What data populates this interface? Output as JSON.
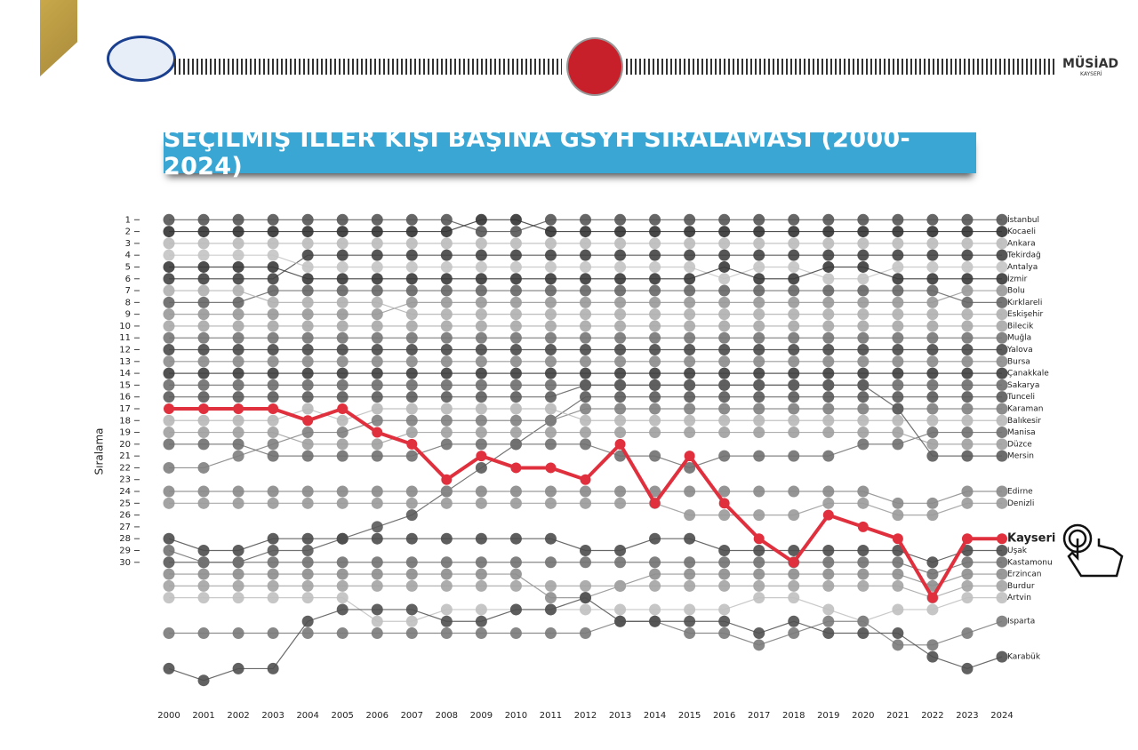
{
  "header": {
    "brand": "MÜSİAD",
    "brand_sub": "KAYSERİ"
  },
  "chart_data": {
    "type": "bump",
    "title": "SEÇİLMİŞ İLLER KİŞİ BAŞINA GSYH SIRALAMASI (2000-2024)",
    "ylabel": "Sıralama",
    "x": [
      2000,
      2001,
      2002,
      2003,
      2004,
      2005,
      2006,
      2007,
      2008,
      2009,
      2010,
      2011,
      2012,
      2013,
      2014,
      2015,
      2016,
      2017,
      2018,
      2019,
      2020,
      2021,
      2022,
      2023,
      2024
    ],
    "xlim": [
      2000,
      2024
    ],
    "xticks": [
      2000,
      2001,
      2002,
      2003,
      2004,
      2005,
      2006,
      2007,
      2008,
      2009,
      2010,
      2011,
      2012,
      2013,
      2014,
      2015,
      2016,
      2017,
      2018,
      2019,
      2020,
      2021,
      2022,
      2023,
      2024
    ],
    "ylim": [
      0,
      41
    ],
    "y_inverted": true,
    "yticks": [
      1,
      2,
      3,
      4,
      5,
      6,
      7,
      8,
      9,
      10,
      11,
      12,
      13,
      14,
      15,
      16,
      17,
      18,
      19,
      20,
      21,
      22,
      23,
      24,
      25,
      26,
      27,
      28,
      29,
      30
    ],
    "highlight": "Kayseri",
    "series": [
      {
        "name": "İstanbul",
        "color": "#555555",
        "values": [
          1,
          1,
          1,
          1,
          1,
          1,
          1,
          1,
          1,
          2,
          2,
          1,
          1,
          1,
          1,
          1,
          1,
          1,
          1,
          1,
          1,
          1,
          1,
          1,
          1
        ]
      },
      {
        "name": "Kocaeli",
        "color": "#333333",
        "values": [
          2,
          2,
          2,
          2,
          2,
          2,
          2,
          2,
          2,
          1,
          1,
          2,
          2,
          2,
          2,
          2,
          2,
          2,
          2,
          2,
          2,
          2,
          2,
          2,
          2
        ]
      },
      {
        "name": "Ankara",
        "color": "#bbbbbb",
        "values": [
          3,
          3,
          3,
          3,
          3,
          3,
          3,
          3,
          3,
          3,
          3,
          3,
          3,
          3,
          3,
          3,
          3,
          3,
          3,
          3,
          3,
          3,
          3,
          3,
          3
        ]
      },
      {
        "name": "Tekirdağ",
        "color": "#444444",
        "values": [
          6,
          6,
          6,
          6,
          4,
          4,
          4,
          4,
          4,
          4,
          4,
          4,
          4,
          4,
          4,
          4,
          4,
          4,
          4,
          4,
          4,
          4,
          4,
          4,
          4
        ]
      },
      {
        "name": "Antalya",
        "color": "#c4c4c4",
        "values": [
          4,
          4,
          4,
          4,
          5,
          5,
          5,
          5,
          5,
          5,
          5,
          5,
          5,
          5,
          5,
          5,
          6,
          5,
          5,
          6,
          6,
          5,
          5,
          5,
          5
        ]
      },
      {
        "name": "İzmir",
        "color": "#3a3a3a",
        "values": [
          5,
          5,
          5,
          5,
          6,
          6,
          6,
          6,
          6,
          6,
          6,
          6,
          6,
          6,
          6,
          6,
          5,
          6,
          6,
          5,
          5,
          6,
          6,
          6,
          6
        ]
      },
      {
        "name": "Bolu",
        "color": "#999999",
        "values": [
          9,
          9,
          9,
          9,
          9,
          9,
          9,
          8,
          8,
          8,
          8,
          8,
          8,
          8,
          8,
          8,
          8,
          8,
          8,
          8,
          8,
          8,
          8,
          7,
          7
        ]
      },
      {
        "name": "Kırklareli",
        "color": "#666666",
        "values": [
          8,
          8,
          8,
          7,
          7,
          7,
          7,
          7,
          7,
          7,
          7,
          7,
          7,
          7,
          7,
          7,
          7,
          7,
          7,
          7,
          7,
          7,
          7,
          8,
          8
        ]
      },
      {
        "name": "Eskişehir",
        "color": "#b0b0b0",
        "values": [
          7,
          7,
          7,
          8,
          8,
          8,
          8,
          9,
          9,
          9,
          9,
          9,
          9,
          9,
          9,
          9,
          9,
          9,
          9,
          9,
          9,
          9,
          9,
          9,
          9
        ]
      },
      {
        "name": "Bilecik",
        "color": "#a8a8a8",
        "values": [
          10,
          10,
          10,
          10,
          10,
          10,
          10,
          10,
          10,
          10,
          10,
          10,
          10,
          10,
          10,
          10,
          10,
          10,
          10,
          10,
          10,
          10,
          10,
          10,
          10
        ]
      },
      {
        "name": "Muğla",
        "color": "#777777",
        "values": [
          11,
          11,
          11,
          11,
          11,
          11,
          11,
          11,
          11,
          11,
          11,
          11,
          11,
          11,
          11,
          11,
          11,
          11,
          11,
          11,
          11,
          11,
          11,
          11,
          11
        ]
      },
      {
        "name": "Yalova",
        "color": "#4a4a4a",
        "values": [
          12,
          12,
          12,
          12,
          12,
          12,
          12,
          12,
          12,
          12,
          12,
          12,
          12,
          12,
          12,
          12,
          12,
          12,
          12,
          12,
          12,
          12,
          12,
          12,
          12
        ]
      },
      {
        "name": "Bursa",
        "color": "#8c8c8c",
        "values": [
          13,
          13,
          13,
          13,
          13,
          13,
          13,
          13,
          13,
          13,
          13,
          13,
          13,
          13,
          13,
          13,
          13,
          13,
          13,
          13,
          13,
          13,
          13,
          13,
          13
        ]
      },
      {
        "name": "Çanakkale",
        "color": "#3f3f3f",
        "values": [
          14,
          14,
          14,
          14,
          14,
          14,
          14,
          14,
          14,
          14,
          14,
          14,
          14,
          14,
          14,
          14,
          14,
          14,
          14,
          14,
          14,
          14,
          14,
          14,
          14
        ]
      },
      {
        "name": "Sakarya",
        "color": "#6e6e6e",
        "values": [
          15,
          15,
          15,
          15,
          15,
          15,
          15,
          15,
          15,
          15,
          15,
          15,
          15,
          15,
          15,
          15,
          15,
          15,
          15,
          15,
          15,
          15,
          15,
          15,
          15
        ]
      },
      {
        "name": "Tunceli",
        "color": "#5a5a5a",
        "values": [
          30,
          30,
          30,
          29,
          29,
          28,
          27,
          26,
          24,
          22,
          20,
          18,
          16,
          16,
          16,
          16,
          16,
          16,
          16,
          16,
          16,
          16,
          16,
          16,
          16
        ]
      },
      {
        "name": "Karaman",
        "color": "#808080",
        "values": [
          22,
          22,
          21,
          20,
          19,
          19,
          18,
          18,
          18,
          18,
          18,
          18,
          17,
          17,
          17,
          17,
          17,
          17,
          17,
          17,
          17,
          17,
          17,
          17,
          17
        ]
      },
      {
        "name": "Balıkesir",
        "color": "#b8b8b8",
        "values": [
          18,
          18,
          18,
          18,
          17,
          18,
          17,
          17,
          17,
          17,
          17,
          17,
          18,
          18,
          18,
          18,
          18,
          18,
          18,
          18,
          18,
          18,
          18,
          18,
          18
        ]
      },
      {
        "name": "Manisa",
        "color": "#707070",
        "values": [
          20,
          20,
          20,
          21,
          21,
          21,
          21,
          21,
          20,
          20,
          20,
          20,
          20,
          21,
          21,
          22,
          21,
          21,
          21,
          21,
          20,
          20,
          19,
          19,
          19
        ]
      },
      {
        "name": "Düzce",
        "color": "#a0a0a0",
        "values": [
          19,
          19,
          19,
          19,
          20,
          20,
          20,
          19,
          19,
          19,
          19,
          19,
          19,
          19,
          19,
          19,
          19,
          19,
          19,
          19,
          19,
          19,
          20,
          20,
          20
        ]
      },
      {
        "name": "Mersin",
        "color": "#5c5c5c",
        "values": [
          16,
          16,
          16,
          16,
          16,
          16,
          16,
          16,
          16,
          16,
          16,
          16,
          15,
          15,
          15,
          15,
          15,
          15,
          15,
          15,
          15,
          17,
          21,
          21,
          21
        ]
      },
      {
        "name": "Edirne",
        "color": "#8a8a8a",
        "values": [
          24,
          24,
          24,
          24,
          24,
          24,
          24,
          24,
          24,
          24,
          24,
          24,
          24,
          24,
          24,
          24,
          24,
          24,
          24,
          24,
          24,
          25,
          25,
          24,
          24
        ]
      },
      {
        "name": "Denizli",
        "color": "#9a9a9a",
        "values": [
          25,
          25,
          25,
          25,
          25,
          25,
          25,
          25,
          25,
          25,
          25,
          25,
          25,
          25,
          25,
          26,
          26,
          26,
          26,
          25,
          25,
          26,
          26,
          25,
          25
        ]
      },
      {
        "name": "Uşak",
        "color": "#4c4c4c",
        "values": [
          28,
          29,
          29,
          28,
          28,
          28,
          28,
          28,
          28,
          28,
          28,
          28,
          29,
          29,
          28,
          28,
          29,
          29,
          29,
          29,
          29,
          29,
          30,
          29,
          29
        ]
      },
      {
        "name": "Kastamonu",
        "color": "#727272",
        "values": [
          29,
          30,
          30,
          30,
          30,
          30,
          30,
          30,
          30,
          30,
          30,
          30,
          30,
          30,
          30,
          30,
          30,
          30,
          30,
          30,
          30,
          30,
          31,
          30,
          30
        ]
      },
      {
        "name": "Erzincan",
        "color": "#8e8e8e",
        "values": [
          31,
          31,
          31,
          31,
          31,
          31,
          31,
          31,
          31,
          31,
          31,
          33,
          33,
          32,
          31,
          31,
          31,
          31,
          31,
          31,
          31,
          31,
          32,
          31,
          31
        ]
      },
      {
        "name": "Burdur",
        "color": "#a4a4a4",
        "values": [
          32,
          32,
          32,
          32,
          32,
          32,
          32,
          32,
          32,
          32,
          32,
          32,
          32,
          32,
          32,
          32,
          32,
          32,
          32,
          32,
          32,
          32,
          33,
          32,
          32
        ]
      },
      {
        "name": "Artvin",
        "color": "#c0c0c0",
        "values": [
          33,
          33,
          33,
          33,
          33,
          33,
          35,
          35,
          34,
          34,
          34,
          34,
          34,
          34,
          34,
          34,
          34,
          33,
          33,
          34,
          35,
          34,
          34,
          33,
          33
        ]
      },
      {
        "name": "Isparta",
        "color": "#7a7a7a",
        "values": [
          36,
          36,
          36,
          36,
          36,
          36,
          36,
          36,
          36,
          36,
          36,
          36,
          36,
          35,
          35,
          36,
          36,
          37,
          36,
          35,
          35,
          37,
          37,
          36,
          35
        ]
      },
      {
        "name": "Karabük",
        "color": "#505050",
        "values": [
          39,
          40,
          39,
          39,
          35,
          34,
          34,
          34,
          35,
          35,
          34,
          34,
          33,
          35,
          35,
          35,
          35,
          36,
          35,
          36,
          36,
          36,
          38,
          39,
          38
        ]
      },
      {
        "name": "Kayseri",
        "color": "#e0303e",
        "values": [
          17,
          17,
          17,
          17,
          18,
          17,
          19,
          20,
          23,
          21,
          22,
          22,
          23,
          20,
          25,
          21,
          25,
          28,
          30,
          26,
          27,
          28,
          33,
          28,
          28
        ]
      }
    ]
  }
}
